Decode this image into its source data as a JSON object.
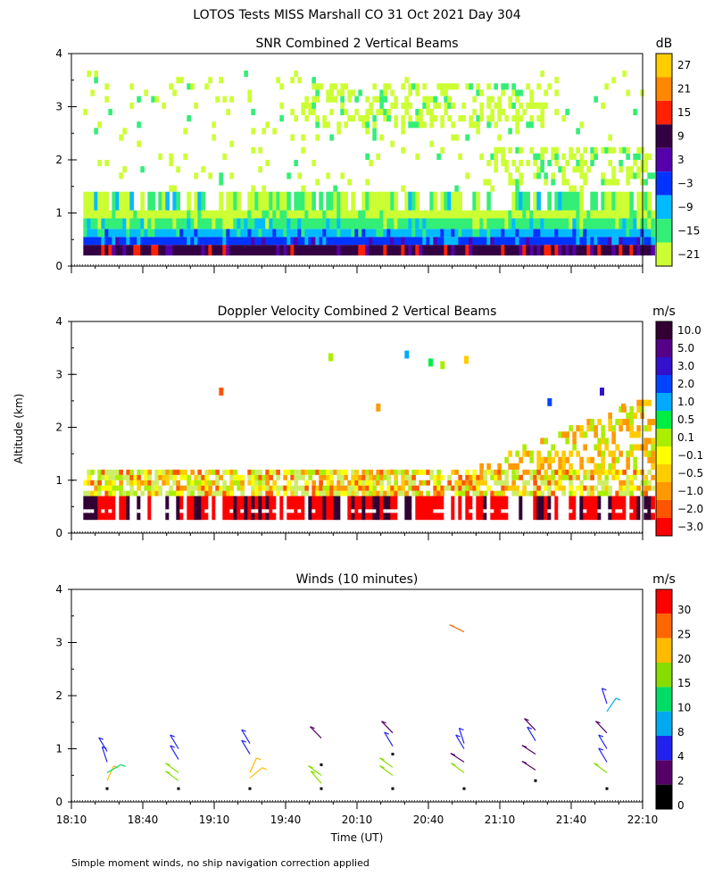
{
  "page_title": "LOTOS Tests MISS Marshall CO  31 Oct 2021 Day 304",
  "shared_y_label": "Altitude (km)",
  "x_label": "Time (UT)",
  "footnote": "Simple moment winds, no ship navigation correction applied",
  "chart_data": [
    {
      "type": "heatmap",
      "title": "SNR Combined 2 Vertical Beams",
      "colorbar_unit": "dB",
      "colorbar": {
        "labels": [
          "27",
          "21",
          "15",
          "9",
          "3",
          "−3",
          "−9",
          "−15",
          "−21"
        ],
        "colors": [
          "#ffcc00",
          "#ff8800",
          "#ff2200",
          "#330044",
          "#5500aa",
          "#0033ff",
          "#00bbff",
          "#33ee77",
          "#ccff33"
        ]
      },
      "xlim": [
        0,
        240
      ],
      "ylim": [
        0,
        4
      ],
      "yticks": [
        0,
        1,
        2,
        3,
        4
      ],
      "x_tick_labels": [],
      "layers": [
        {
          "alt": [
            0.2,
            0.4
          ],
          "level": "9 dB"
        },
        {
          "alt": [
            0.4,
            0.6
          ],
          "level": "-3 dB"
        },
        {
          "alt": [
            0.6,
            0.9
          ],
          "level": "-15 dB"
        },
        {
          "alt": [
            0.9,
            1.4
          ],
          "level": "-21 to -9 dB"
        },
        {
          "alt": [
            1.4,
            3.5
          ],
          "level": "-21 dB (patchy)"
        }
      ]
    },
    {
      "type": "heatmap",
      "title": "Doppler Velocity Combined 2 Vertical Beams",
      "colorbar_unit": "m/s",
      "colorbar": {
        "labels": [
          "10.0",
          "5.0",
          "3.0",
          "2.0",
          "1.0",
          "0.5",
          "0.1",
          "−0.1",
          "−0.5",
          "−1.0",
          "−2.0",
          "−3.0"
        ],
        "colors": [
          "#330033",
          "#550088",
          "#3311cc",
          "#0044ff",
          "#00aaff",
          "#00ee44",
          "#aaee00",
          "#ffff00",
          "#ffcc00",
          "#ff9900",
          "#ff5500",
          "#ff0000"
        ]
      },
      "xlim": [
        0,
        240
      ],
      "ylim": [
        0,
        4
      ],
      "yticks": [
        0,
        1,
        2,
        3,
        4
      ],
      "x_tick_labels": []
    },
    {
      "type": "scatter",
      "title": "Winds (10 minutes)",
      "colorbar_unit": "m/s",
      "colorbar": {
        "labels": [
          "30",
          "25",
          "20",
          "15",
          "10",
          "8",
          "4",
          "2",
          "0"
        ],
        "colors": [
          "#ff0000",
          "#ff6600",
          "#ffbb00",
          "#88dd00",
          "#00dd66",
          "#00aaee",
          "#2222ee",
          "#550066",
          "#000000"
        ]
      },
      "xlim": [
        0,
        240
      ],
      "ylim": [
        0,
        4
      ],
      "yticks": [
        0,
        1,
        2,
        3,
        4
      ],
      "x_tick_labels": [
        "18:10",
        "18:40",
        "19:10",
        "19:40",
        "20:10",
        "20:40",
        "21:10",
        "21:40",
        "22:10"
      ],
      "profiles": [
        {
          "t": 15,
          "barbs": [
            [
              0.25,
              0.5
            ],
            [
              0.4,
              18
            ],
            [
              0.55,
              10
            ],
            [
              0.75,
              4
            ],
            [
              0.95,
              3
            ]
          ]
        },
        {
          "t": 45,
          "barbs": [
            [
              0.25,
              0.5
            ],
            [
              0.4,
              12
            ],
            [
              0.55,
              12
            ],
            [
              0.8,
              3
            ],
            [
              1.0,
              3
            ]
          ]
        },
        {
          "t": 75,
          "barbs": [
            [
              0.25,
              0.5
            ],
            [
              0.45,
              20
            ],
            [
              0.55,
              18
            ],
            [
              0.9,
              3
            ],
            [
              1.1,
              3
            ]
          ]
        },
        {
          "t": 105,
          "barbs": [
            [
              0.25,
              0.5
            ],
            [
              0.35,
              13
            ],
            [
              0.5,
              12
            ],
            [
              0.7,
              0.5
            ],
            [
              1.2,
              2
            ]
          ]
        },
        {
          "t": 135,
          "barbs": [
            [
              0.25,
              0.5
            ],
            [
              0.5,
              12
            ],
            [
              0.65,
              12
            ],
            [
              0.9,
              0.5
            ],
            [
              1.05,
              3
            ],
            [
              1.3,
              2
            ]
          ]
        },
        {
          "t": 165,
          "barbs": [
            [
              0.25,
              0.5
            ],
            [
              0.55,
              12
            ],
            [
              0.75,
              1
            ],
            [
              1.0,
              3
            ],
            [
              1.1,
              4
            ],
            [
              3.2,
              22
            ]
          ]
        },
        {
          "t": 195,
          "barbs": [
            [
              0.4,
              0.5
            ],
            [
              0.6,
              1
            ],
            [
              0.9,
              1
            ],
            [
              1.15,
              3
            ],
            [
              1.35,
              2
            ]
          ]
        },
        {
          "t": 225,
          "barbs": [
            [
              0.25,
              0.5
            ],
            [
              0.55,
              12
            ],
            [
              0.75,
              3
            ],
            [
              1.0,
              3
            ],
            [
              1.3,
              2
            ],
            [
              1.7,
              8
            ],
            [
              1.85,
              4
            ]
          ]
        }
      ]
    }
  ]
}
